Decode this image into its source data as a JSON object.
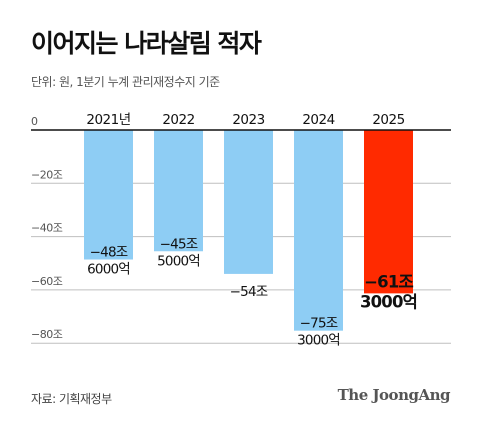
{
  "title": "이어지는 나라살림 적자",
  "subtitle": "단위: 원, 1분기 누계 관리재정수지 기준",
  "source": "자료: 기획재정부",
  "logo": "The JoongAng",
  "chart_data": {
    "type": "bar",
    "categories": [
      "2021년",
      "2022",
      "2023",
      "2024",
      "2025"
    ],
    "values": [
      -48.6,
      -45.5,
      -54,
      -75.3,
      -61.3
    ],
    "data_labels": [
      [
        "−48조",
        "6000억"
      ],
      [
        "−45조",
        "5000억"
      ],
      [
        "−54조"
      ],
      [
        "−75조",
        "3000억"
      ],
      [
        "−61조",
        "3000억"
      ]
    ],
    "y_ticks": [
      0,
      -20,
      -40,
      -60,
      -80
    ],
    "y_tick_labels": [
      "0",
      "−20조",
      "−40조",
      "−60조",
      "−80조"
    ],
    "ylim": [
      -85,
      0
    ],
    "grid": true,
    "colors": {
      "default": "#8ecdf4",
      "highlight": "#ff2a00",
      "grid": "#bfbfbf",
      "axis": "#111111"
    },
    "highlight_index": 4
  }
}
